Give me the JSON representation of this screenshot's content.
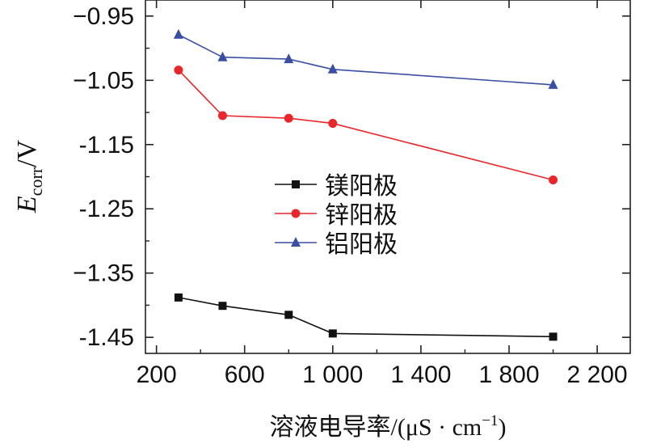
{
  "chart_data": {
    "type": "line",
    "title": "",
    "xlabel_main": "溶液电导率",
    "xlabel_unit": "/(μS · cm",
    "xlabel_sup": "−1",
    "xlabel_close": ")",
    "ylabel_main": "E",
    "ylabel_sub": "corr",
    "ylabel_unit": "/V",
    "xlim": [
      150,
      2350
    ],
    "ylim": [
      -1.475,
      -0.925
    ],
    "xticks": [
      200,
      600,
      1000,
      1400,
      1800,
      2200
    ],
    "xtick_labels": [
      "200",
      "600",
      "1 000",
      "1 400",
      "1 800",
      "2 200"
    ],
    "yticks": [
      -0.95,
      -1.05,
      -1.15,
      -1.25,
      -1.35,
      -1.45
    ],
    "ytick_labels": [
      "−0.95",
      "−1.05",
      "-1.15",
      "-1.25",
      "−1.35",
      "-1.45"
    ],
    "legend_position": "center",
    "grid": false,
    "series": [
      {
        "name": "镁阳极",
        "color": "#111111",
        "marker": "square",
        "x": [
          300,
          500,
          800,
          1000,
          2000
        ],
        "values": [
          -1.388,
          -1.401,
          -1.415,
          -1.444,
          -1.449
        ]
      },
      {
        "name": "锌阳极",
        "color": "#e8262b",
        "marker": "circle",
        "x": [
          300,
          500,
          800,
          1000,
          2000
        ],
        "values": [
          -1.034,
          -1.105,
          -1.109,
          -1.117,
          -1.205
        ]
      },
      {
        "name": "铝阳极",
        "color": "#3a4fa3",
        "marker": "triangle",
        "x": [
          300,
          500,
          800,
          1000,
          2000
        ],
        "values": [
          -0.979,
          -1.014,
          -1.017,
          -1.033,
          -1.057
        ]
      }
    ]
  }
}
